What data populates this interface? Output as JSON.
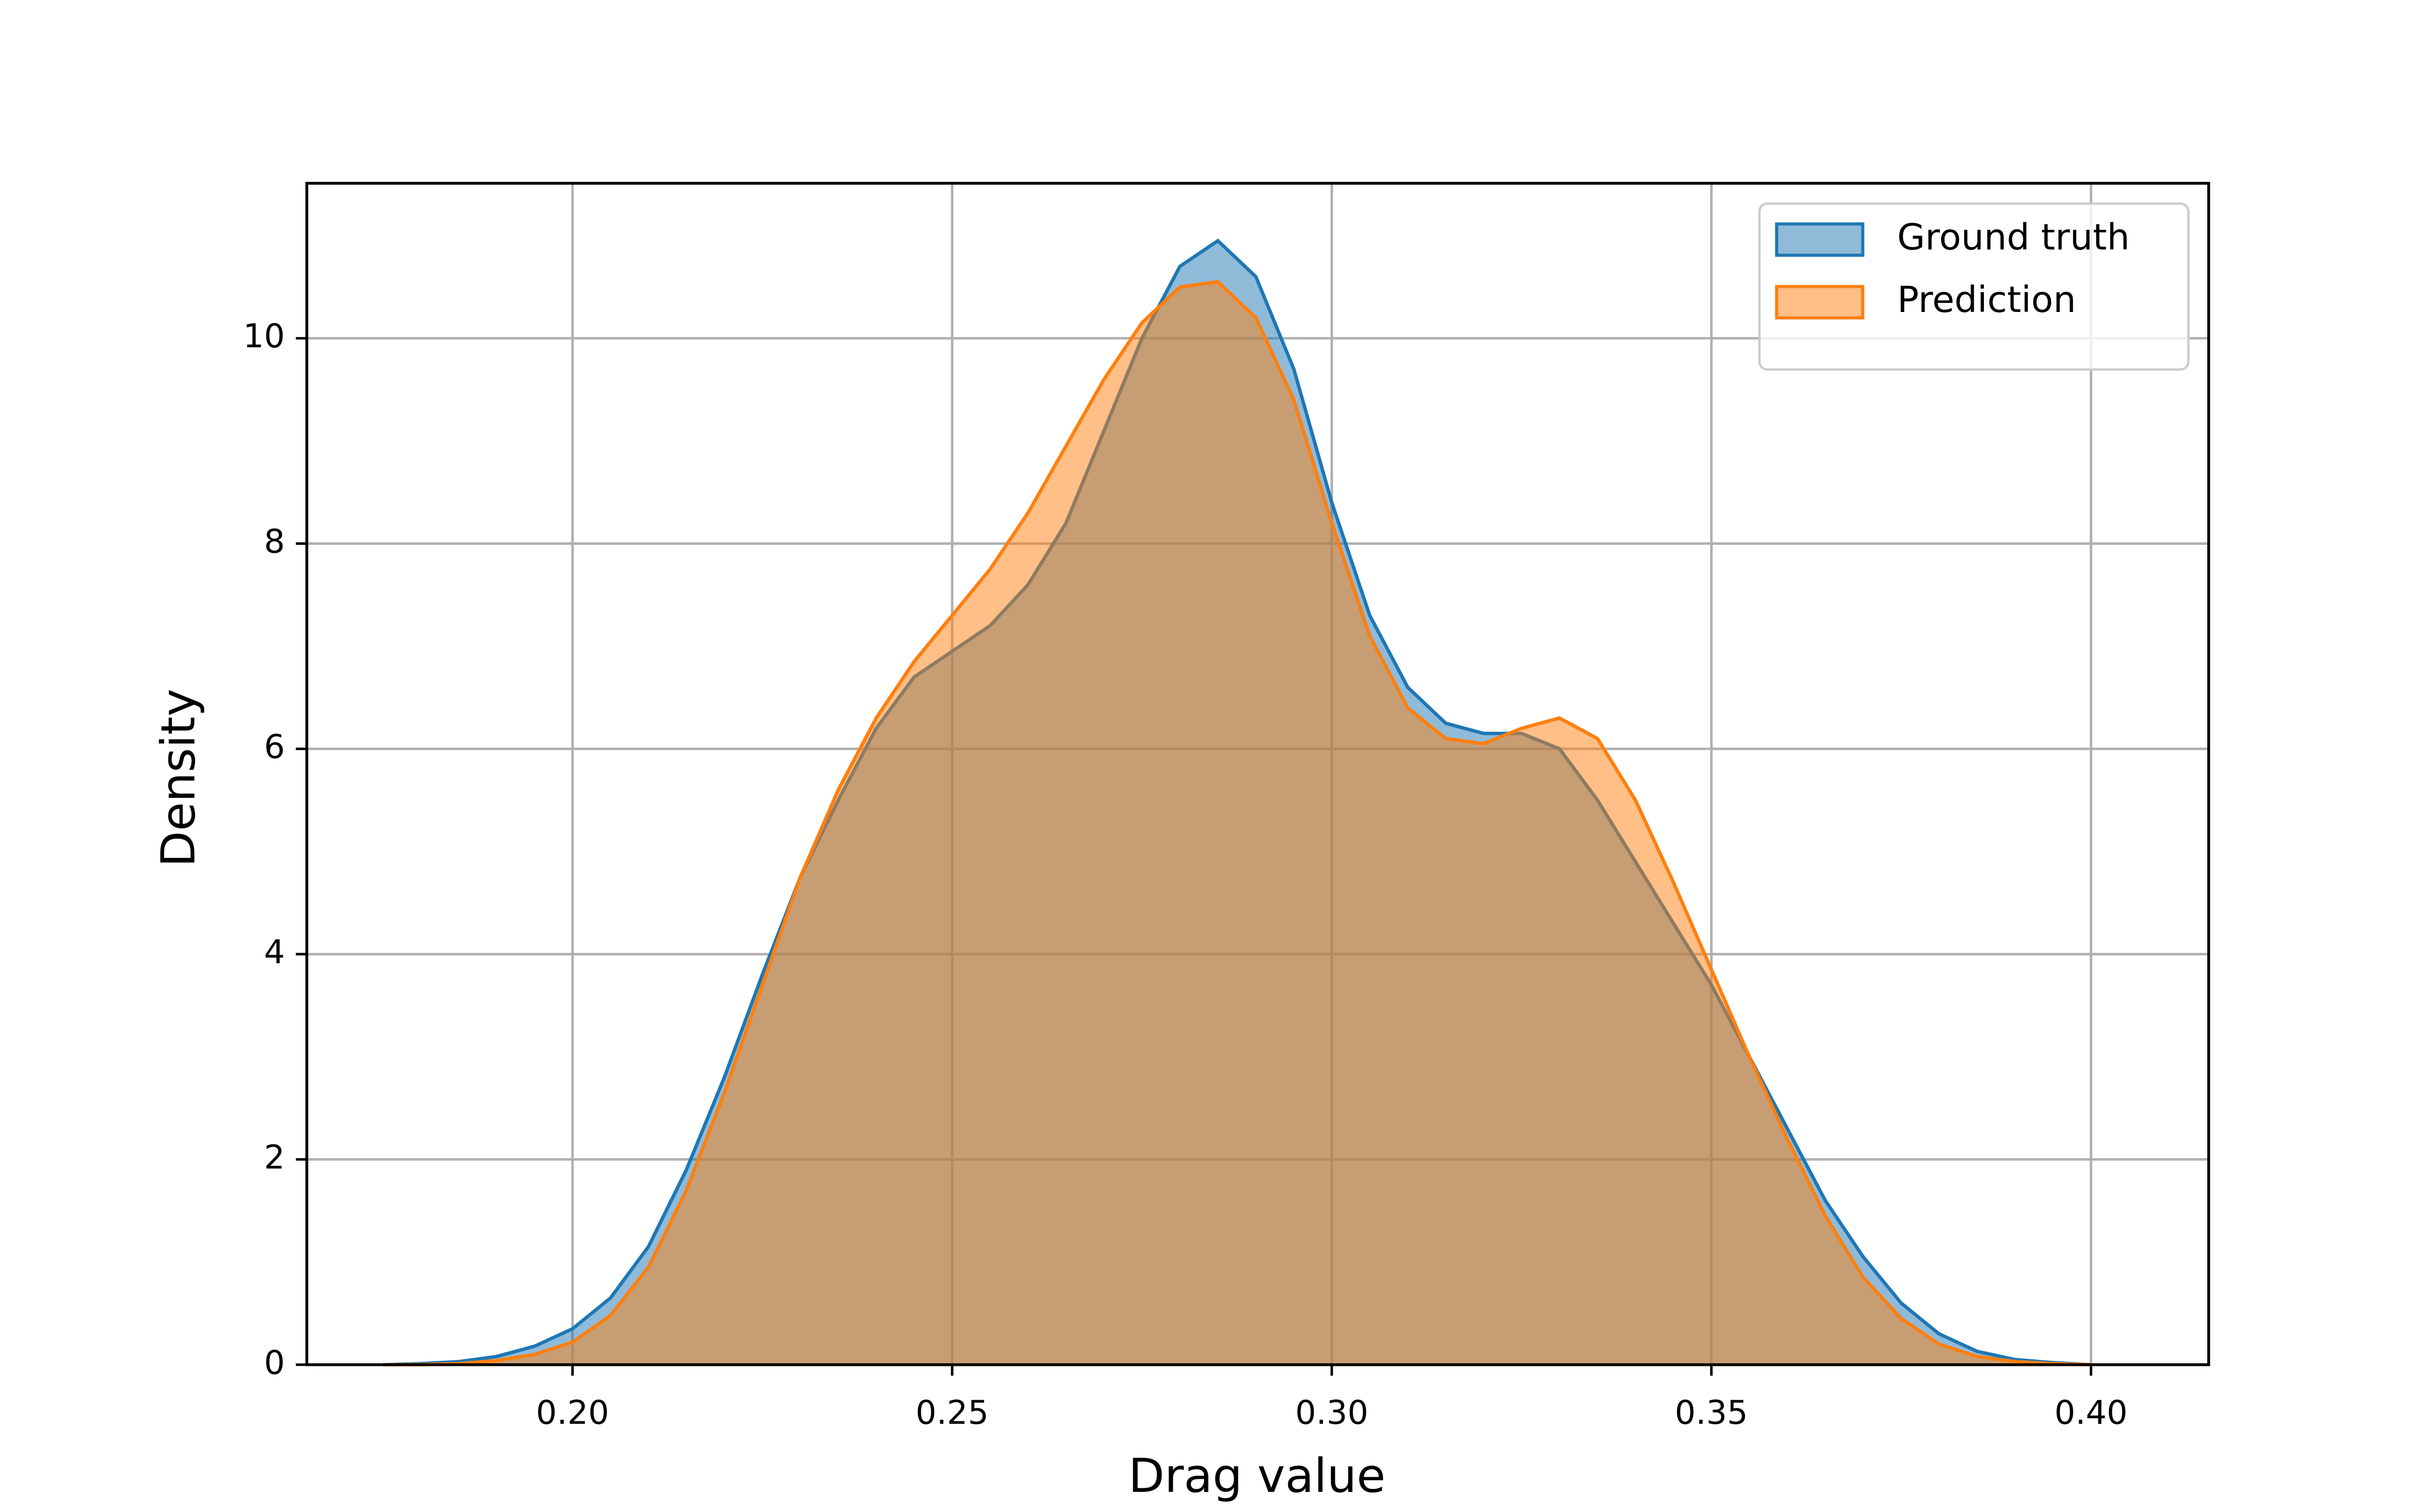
{
  "chart_data": {
    "type": "kde",
    "x_label": "Drag value",
    "y_label": "Density",
    "x": [
      0.175,
      0.18,
      0.185,
      0.19,
      0.195,
      0.2,
      0.205,
      0.21,
      0.215,
      0.22,
      0.225,
      0.23,
      0.235,
      0.24,
      0.245,
      0.25,
      0.255,
      0.26,
      0.265,
      0.27,
      0.275,
      0.28,
      0.285,
      0.29,
      0.295,
      0.3,
      0.305,
      0.31,
      0.315,
      0.32,
      0.325,
      0.33,
      0.335,
      0.34,
      0.345,
      0.35,
      0.355,
      0.36,
      0.365,
      0.37,
      0.375,
      0.38,
      0.385,
      0.39,
      0.395,
      0.4
    ],
    "series": [
      {
        "name": "Ground truth",
        "color": "#1f77b4",
        "values": [
          0,
          0.01,
          0.03,
          0.08,
          0.18,
          0.35,
          0.65,
          1.15,
          1.9,
          2.8,
          3.8,
          4.75,
          5.5,
          6.2,
          6.7,
          6.95,
          7.2,
          7.6,
          8.2,
          9.1,
          10.0,
          10.7,
          10.95,
          10.6,
          9.7,
          8.4,
          7.3,
          6.6,
          6.25,
          6.15,
          6.15,
          6.0,
          5.5,
          4.9,
          4.3,
          3.7,
          3.0,
          2.3,
          1.6,
          1.05,
          0.6,
          0.3,
          0.13,
          0.05,
          0.02,
          0
        ]
      },
      {
        "name": "Prediction",
        "color": "#ff7f0e",
        "values": [
          0,
          0,
          0.01,
          0.04,
          0.1,
          0.22,
          0.48,
          0.95,
          1.7,
          2.65,
          3.7,
          4.75,
          5.6,
          6.3,
          6.85,
          7.3,
          7.75,
          8.3,
          8.95,
          9.6,
          10.15,
          10.5,
          10.55,
          10.2,
          9.4,
          8.2,
          7.1,
          6.4,
          6.1,
          6.05,
          6.2,
          6.3,
          6.1,
          5.5,
          4.7,
          3.85,
          3.0,
          2.2,
          1.45,
          0.85,
          0.45,
          0.2,
          0.08,
          0.03,
          0.01,
          0
        ]
      }
    ],
    "xlim": [
      0.165,
      0.4155
    ],
    "ylim": [
      0,
      11.51
    ],
    "xticks": [
      {
        "value": 0.2,
        "label": "0.20"
      },
      0.25,
      {
        "value": 0.3,
        "label": "0.30"
      },
      0.35,
      {
        "value": 0.4,
        "label": "0.40"
      }
    ],
    "yticks": [
      0,
      2,
      4,
      6,
      8,
      10
    ],
    "grid": true,
    "legend": "upper-right",
    "fill_opacity": 0.5
  }
}
